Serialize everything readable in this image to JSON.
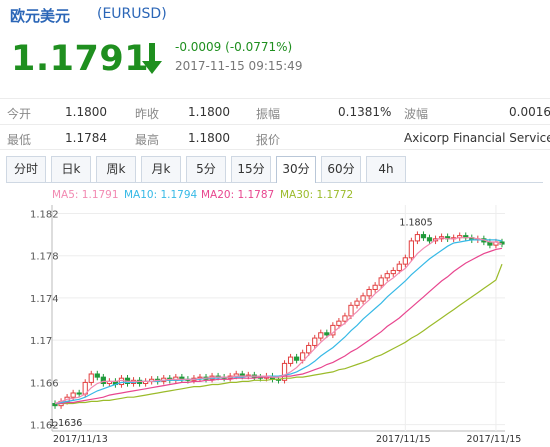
{
  "header": {
    "title": "欧元美元",
    "code": "(EURUSD)"
  },
  "quote": {
    "price": "1.1791",
    "change": "-0.0009 (-0.0771%)",
    "time": "2017-11-15 09:15:49",
    "direction": "down",
    "color": "#1f8f1f"
  },
  "stats": {
    "row1": [
      {
        "label": "今开",
        "value": "1.1800"
      },
      {
        "label": "昨收",
        "value": "1.1800"
      },
      {
        "label": "振幅",
        "value": "0.1381%"
      },
      {
        "label": "波幅",
        "value": "0.0016"
      }
    ],
    "row2": [
      {
        "label": "最低",
        "value": "1.1784"
      },
      {
        "label": "最高",
        "value": "1.1800"
      },
      {
        "label": "报价",
        "value": "Axicorp Financial Services"
      }
    ]
  },
  "tabs": [
    "分时",
    "日k",
    "周k",
    "月k",
    "5分",
    "15分",
    "30分",
    "60分",
    "4h"
  ],
  "active_tab": 6,
  "legend": {
    "ma5": "MA5: 1.1791",
    "ma10": "MA10: 1.1794",
    "ma20": "MA20: 1.1787",
    "ma30": "MA30: 1.1772"
  },
  "colors": {
    "ma5": "#f28ab2",
    "ma10": "#36b9e6",
    "ma20": "#e8468f",
    "ma30": "#9bbb2a",
    "up": "#e24040",
    "down": "#1f9a3a",
    "brand": "#2b66b7"
  },
  "chart_data": {
    "type": "candlestick",
    "yticks": [
      "1.182",
      "1.178",
      "1.174",
      "1.17",
      "1.166",
      "1.162"
    ],
    "ytick_values": [
      1.182,
      1.178,
      1.174,
      1.17,
      1.166,
      1.162
    ],
    "ylim": [
      1.1614,
      1.1828
    ],
    "x_labels": [
      {
        "text": "2017/11/13",
        "index": 0
      },
      {
        "text": "2017/11/15",
        "index": 58
      },
      {
        "text": "2017/11/15",
        "index": 73
      }
    ],
    "annotations": [
      {
        "text": "1.1805",
        "index": 60,
        "value": 1.1805
      },
      {
        "text": "1.1636",
        "index": 2,
        "value": 1.1636
      }
    ],
    "closes": [
      1.1638,
      1.1642,
      1.1646,
      1.165,
      1.1649,
      1.166,
      1.1668,
      1.1665,
      1.1659,
      1.1661,
      1.1658,
      1.1664,
      1.1659,
      1.1662,
      1.1659,
      1.1661,
      1.1663,
      1.1661,
      1.1664,
      1.1662,
      1.1665,
      1.1663,
      1.1662,
      1.1664,
      1.1665,
      1.1663,
      1.1666,
      1.1665,
      1.1664,
      1.1666,
      1.1668,
      1.1666,
      1.1667,
      1.1665,
      1.1664,
      1.1666,
      1.1663,
      1.1662,
      1.1678,
      1.1684,
      1.1681,
      1.1688,
      1.1695,
      1.1702,
      1.1707,
      1.1705,
      1.1714,
      1.1718,
      1.1723,
      1.1733,
      1.1737,
      1.1742,
      1.1748,
      1.1752,
      1.1759,
      1.1763,
      1.1766,
      1.1772,
      1.1778,
      1.1794,
      1.18,
      1.1797,
      1.1794,
      1.1796,
      1.1798,
      1.1796,
      1.1797,
      1.1799,
      1.1797,
      1.1795,
      1.1796,
      1.1793,
      1.179,
      1.1793,
      1.1791
    ],
    "ma5": [
      1.164,
      1.1642,
      1.1644,
      1.1645,
      1.1646,
      1.1649,
      1.1655,
      1.1659,
      1.1661,
      1.1661,
      1.1661,
      1.1662,
      1.1661,
      1.1661,
      1.1661,
      1.1661,
      1.1661,
      1.1662,
      1.1662,
      1.1663,
      1.1663,
      1.1663,
      1.1663,
      1.1663,
      1.1664,
      1.1664,
      1.1665,
      1.1665,
      1.1665,
      1.1665,
      1.1666,
      1.1666,
      1.1666,
      1.1666,
      1.1666,
      1.1666,
      1.1665,
      1.1665,
      1.1667,
      1.167,
      1.1674,
      1.168,
      1.1686,
      1.1692,
      1.1698,
      1.1703,
      1.1707,
      1.1712,
      1.1716,
      1.1722,
      1.1727,
      1.1733,
      1.1738,
      1.1744,
      1.1749,
      1.1755,
      1.1759,
      1.1764,
      1.1768,
      1.1775,
      1.1782,
      1.1787,
      1.1791,
      1.1795,
      1.1797,
      1.1796,
      1.1796,
      1.1797,
      1.1797,
      1.1797,
      1.1796,
      1.1795,
      1.1793,
      1.1793,
      1.1791
    ],
    "ma10": [
      1.164,
      1.1641,
      1.1642,
      1.1643,
      1.1644,
      1.1646,
      1.1649,
      1.1652,
      1.1654,
      1.1656,
      1.1658,
      1.166,
      1.166,
      1.166,
      1.1661,
      1.1661,
      1.1661,
      1.1661,
      1.1662,
      1.1662,
      1.1662,
      1.1662,
      1.1663,
      1.1663,
      1.1663,
      1.1664,
      1.1664,
      1.1664,
      1.1665,
      1.1665,
      1.1665,
      1.1665,
      1.1666,
      1.1666,
      1.1666,
      1.1666,
      1.1666,
      1.1666,
      1.1667,
      1.1668,
      1.167,
      1.1673,
      1.1676,
      1.168,
      1.1685,
      1.1689,
      1.1693,
      1.1698,
      1.1703,
      1.1709,
      1.1714,
      1.172,
      1.1725,
      1.173,
      1.1735,
      1.1741,
      1.1746,
      1.1751,
      1.1756,
      1.1762,
      1.1767,
      1.1772,
      1.1777,
      1.1781,
      1.1785,
      1.1789,
      1.1792,
      1.1793,
      1.1794,
      1.1795,
      1.1795,
      1.1795,
      1.1795,
      1.1795,
      1.1794
    ],
    "ma20": [
      1.164,
      1.164,
      1.1641,
      1.1641,
      1.1642,
      1.1643,
      1.1644,
      1.1645,
      1.1646,
      1.1648,
      1.1649,
      1.165,
      1.1651,
      1.1652,
      1.1653,
      1.1654,
      1.1655,
      1.1656,
      1.1657,
      1.1658,
      1.1659,
      1.166,
      1.166,
      1.1661,
      1.1661,
      1.1662,
      1.1662,
      1.1663,
      1.1663,
      1.1663,
      1.1664,
      1.1664,
      1.1664,
      1.1664,
      1.1665,
      1.1665,
      1.1665,
      1.1665,
      1.1666,
      1.1666,
      1.1667,
      1.1668,
      1.167,
      1.1672,
      1.1674,
      1.1677,
      1.1679,
      1.1682,
      1.1685,
      1.1689,
      1.1692,
      1.1696,
      1.17,
      1.1704,
      1.1708,
      1.1713,
      1.1717,
      1.1721,
      1.1726,
      1.1731,
      1.1736,
      1.1741,
      1.1746,
      1.1751,
      1.1756,
      1.176,
      1.1765,
      1.1769,
      1.1773,
      1.1776,
      1.1779,
      1.1782,
      1.1784,
      1.1786,
      1.1787
    ],
    "ma30": [
      1.164,
      1.164,
      1.164,
      1.164,
      1.1641,
      1.1641,
      1.1642,
      1.1642,
      1.1643,
      1.1643,
      1.1644,
      1.1645,
      1.1646,
      1.1646,
      1.1647,
      1.1648,
      1.1649,
      1.165,
      1.1651,
      1.1652,
      1.1653,
      1.1654,
      1.1655,
      1.1656,
      1.1656,
      1.1657,
      1.1658,
      1.1658,
      1.1659,
      1.166,
      1.166,
      1.1661,
      1.1661,
      1.1662,
      1.1662,
      1.1662,
      1.1663,
      1.1663,
      1.1664,
      1.1664,
      1.1665,
      1.1665,
      1.1666,
      1.1667,
      1.1668,
      1.1669,
      1.167,
      1.1672,
      1.1673,
      1.1675,
      1.1677,
      1.1679,
      1.1681,
      1.1684,
      1.1686,
      1.1689,
      1.1692,
      1.1695,
      1.1698,
      1.1702,
      1.1705,
      1.1709,
      1.1713,
      1.1717,
      1.1721,
      1.1725,
      1.1729,
      1.1733,
      1.1737,
      1.1741,
      1.1745,
      1.1749,
      1.1753,
      1.1757,
      1.1772
    ]
  }
}
